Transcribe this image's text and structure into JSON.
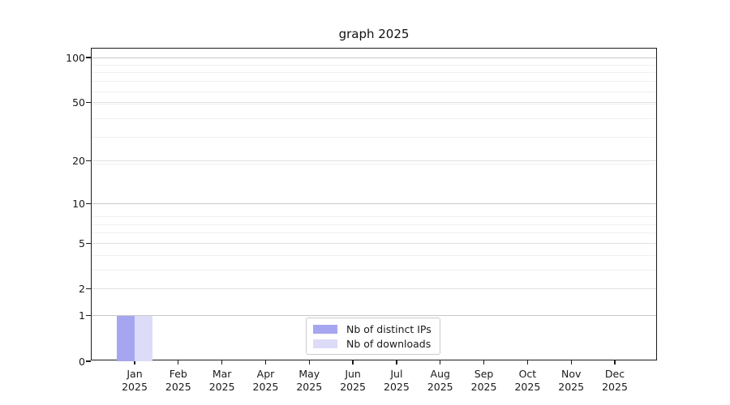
{
  "chart_data": {
    "type": "bar",
    "title": "graph 2025",
    "categories": [
      "Jan",
      "Feb",
      "Mar",
      "Apr",
      "May",
      "Jun",
      "Jul",
      "Aug",
      "Sep",
      "Oct",
      "Nov",
      "Dec"
    ],
    "category_year": "2025",
    "series": [
      {
        "name": "Nb of distinct IPs",
        "color": "#a6a6f0",
        "values": [
          1,
          0,
          0,
          0,
          0,
          0,
          0,
          0,
          0,
          0,
          0,
          0
        ]
      },
      {
        "name": "Nb of downloads",
        "color": "#dcdcf8",
        "values": [
          1,
          0,
          0,
          0,
          0,
          0,
          0,
          0,
          0,
          0,
          0,
          0
        ]
      }
    ],
    "y_axis": {
      "ticks": [
        0,
        1,
        2,
        5,
        10,
        20,
        50,
        100
      ],
      "scale": "log1p",
      "ylim": [
        0,
        115
      ]
    },
    "x_axis": {
      "label_format": "month over year"
    },
    "grid": {
      "major": true,
      "minor": true
    },
    "legend": {
      "position": "bottom-center-inside"
    }
  }
}
